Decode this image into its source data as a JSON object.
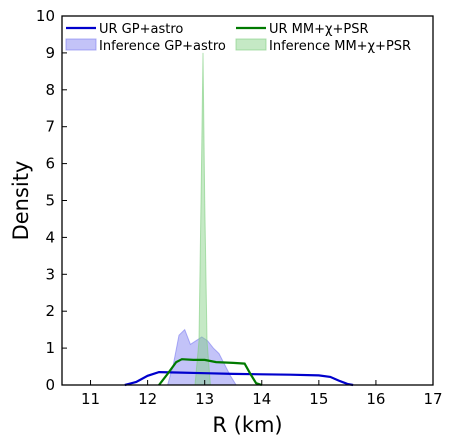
{
  "chart_data": {
    "type": "area",
    "xlabel": "R (km)",
    "ylabel": "Density",
    "xlim": [
      10.5,
      17
    ],
    "ylim": [
      0,
      10
    ],
    "xticks": [
      11,
      12,
      13,
      14,
      15,
      16,
      17
    ],
    "yticks": [
      0,
      1,
      2,
      3,
      4,
      5,
      6,
      7,
      8,
      9,
      10
    ],
    "legend_placement": "top",
    "series": [
      {
        "name": "Inference GP+astro",
        "kind": "filled",
        "color": "#7b7bf0",
        "x": [
          12.35,
          12.45,
          12.55,
          12.65,
          12.75,
          12.85,
          12.95,
          13.05,
          13.15,
          13.25,
          13.35,
          13.45,
          13.55
        ],
        "y": [
          0,
          0.55,
          1.35,
          1.5,
          1.1,
          1.2,
          1.3,
          1.2,
          1.0,
          0.85,
          0.55,
          0.25,
          0
        ]
      },
      {
        "name": "Inference MM+χ+PSR",
        "kind": "filled",
        "color": "#7fcf7f",
        "x": [
          12.83,
          12.9,
          12.94,
          12.97,
          13.0,
          13.04,
          13.1
        ],
        "y": [
          0,
          1.2,
          5.5,
          9.0,
          5.0,
          1.2,
          0
        ]
      },
      {
        "name": "UR GP+astro",
        "kind": "line",
        "color": "#0000cc",
        "x": [
          11.6,
          11.8,
          12.0,
          12.2,
          12.5,
          13.0,
          13.5,
          14.0,
          14.5,
          15.0,
          15.2,
          15.35,
          15.5,
          15.6
        ],
        "y": [
          0,
          0.08,
          0.25,
          0.35,
          0.34,
          0.32,
          0.3,
          0.29,
          0.28,
          0.26,
          0.22,
          0.12,
          0.03,
          0
        ]
      },
      {
        "name": "UR MM+χ+PSR",
        "kind": "line",
        "color": "#007a00",
        "x": [
          12.2,
          12.35,
          12.5,
          12.6,
          12.8,
          13.0,
          13.2,
          13.5,
          13.7,
          13.8,
          13.9,
          14.0
        ],
        "y": [
          0,
          0.3,
          0.62,
          0.7,
          0.68,
          0.68,
          0.62,
          0.6,
          0.58,
          0.3,
          0.05,
          0
        ]
      }
    ]
  }
}
